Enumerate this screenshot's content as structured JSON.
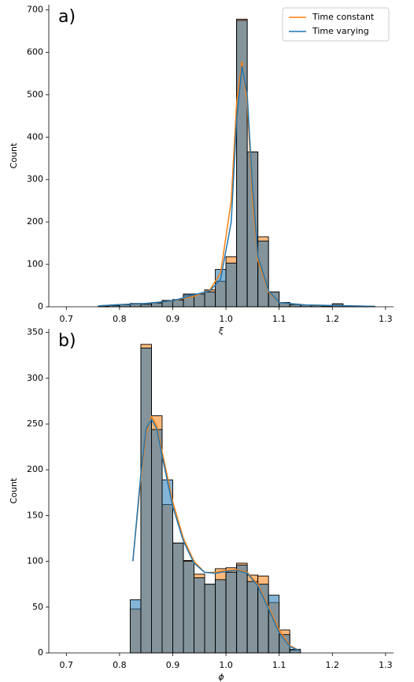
{
  "chart_data": [
    {
      "type": "histogram",
      "panel_label": "a)",
      "xlabel": "ξ",
      "ylabel": "Count",
      "xlim": [
        0.667,
        1.315
      ],
      "ylim": [
        0,
        712
      ],
      "xticks": [
        0.7,
        0.8,
        0.9,
        {
          "value": 1,
          "label": "1.0"
        },
        1.1,
        1.2,
        1.3
      ],
      "yticks": [
        0,
        100,
        200,
        300,
        400,
        500,
        600,
        700
      ],
      "legend": "upper right",
      "bins": [
        0.76,
        0.78,
        0.8,
        0.82,
        0.84,
        0.86,
        0.88,
        0.9,
        0.92,
        0.94,
        0.96,
        0.98,
        1.0,
        1.02,
        1.04,
        1.06,
        1.08,
        1.1,
        1.12,
        1.14,
        1.16,
        1.18,
        1.2,
        1.22,
        1.24,
        1.26,
        1.28
      ],
      "series": [
        {
          "name": "Time constant",
          "color": "#ff7f0e",
          "values": [
            1,
            3,
            5,
            8,
            6,
            10,
            15,
            17,
            28,
            30,
            40,
            60,
            118,
            678,
            365,
            165,
            35,
            10,
            6,
            4,
            3,
            2,
            7,
            2,
            1,
            1
          ],
          "kde_x": [
            0.76,
            0.8,
            0.85,
            0.9,
            0.94,
            0.97,
            0.99,
            1.01,
            1.02,
            1.03,
            1.04,
            1.05,
            1.06,
            1.08,
            1.1,
            1.15,
            1.2,
            1.28
          ],
          "kde_y": [
            2,
            5,
            8,
            14,
            25,
            40,
            80,
            250,
            480,
            578,
            480,
            250,
            110,
            35,
            10,
            4,
            3,
            1
          ]
        },
        {
          "name": "Time varying",
          "color": "#1f77b4",
          "values": [
            1,
            3,
            5,
            7,
            6,
            9,
            14,
            16,
            30,
            30,
            35,
            88,
            103,
            675,
            365,
            155,
            35,
            10,
            5,
            4,
            3,
            2,
            7,
            2,
            1,
            1
          ],
          "kde_x": [
            0.76,
            0.8,
            0.85,
            0.9,
            0.94,
            0.97,
            0.99,
            1.01,
            1.02,
            1.03,
            1.04,
            1.05,
            1.06,
            1.08,
            1.1,
            1.15,
            1.2,
            1.28
          ],
          "kde_y": [
            2,
            5,
            8,
            14,
            28,
            38,
            65,
            200,
            440,
            568,
            500,
            280,
            120,
            38,
            10,
            4,
            3,
            1
          ]
        }
      ]
    },
    {
      "type": "histogram",
      "panel_label": "b)",
      "xlabel": "ϕ",
      "ylabel": "Count",
      "xlim": [
        0.667,
        1.315
      ],
      "ylim": [
        0,
        354
      ],
      "xticks": [
        0.7,
        0.8,
        0.9,
        {
          "value": 1,
          "label": "1.0"
        },
        1.1,
        1.2,
        1.3
      ],
      "yticks": [
        0,
        50,
        100,
        150,
        200,
        250,
        300,
        350
      ],
      "bins": [
        0.82,
        0.84,
        0.86,
        0.88,
        0.9,
        0.92,
        0.94,
        0.96,
        0.98,
        1.0,
        1.02,
        1.04,
        1.06,
        1.08,
        1.1,
        1.12,
        1.14
      ],
      "series": [
        {
          "name": "Time constant",
          "color": "#ff7f0e",
          "values": [
            48,
            337,
            259,
            162,
            120,
            101,
            86,
            75,
            92,
            93,
            98,
            85,
            84,
            55,
            25,
            3
          ],
          "kde_x": [
            0.825,
            0.84,
            0.85,
            0.86,
            0.87,
            0.88,
            0.9,
            0.92,
            0.94,
            0.96,
            0.98,
            1.0,
            1.02,
            1.04,
            1.06,
            1.08,
            1.1,
            1.12,
            1.14
          ],
          "kde_y": [
            100,
            190,
            240,
            258,
            248,
            220,
            165,
            125,
            100,
            88,
            88,
            90,
            91,
            88,
            75,
            50,
            25,
            8,
            2
          ]
        },
        {
          "name": "Time varying",
          "color": "#1f77b4",
          "values": [
            58,
            333,
            244,
            189,
            120,
            100,
            82,
            75,
            80,
            88,
            96,
            78,
            75,
            63,
            20,
            4
          ],
          "kde_x": [
            0.825,
            0.84,
            0.85,
            0.86,
            0.87,
            0.88,
            0.9,
            0.92,
            0.94,
            0.96,
            0.98,
            1.0,
            1.02,
            1.04,
            1.06,
            1.08,
            1.1,
            1.12,
            1.14
          ],
          "kde_y": [
            100,
            195,
            245,
            255,
            245,
            215,
            160,
            122,
            98,
            88,
            87,
            89,
            90,
            87,
            73,
            48,
            22,
            7,
            2
          ]
        }
      ]
    }
  ]
}
